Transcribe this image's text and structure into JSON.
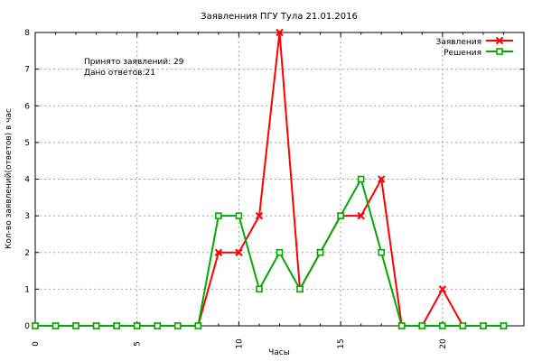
{
  "chart_data": {
    "type": "line",
    "title": "Заявленния ПГУ Тула 21.01.2016",
    "xlabel": "Часы",
    "ylabel": "Кол-во заявлений(ответов) в час",
    "xlim": [
      0,
      24
    ],
    "ylim": [
      0,
      8
    ],
    "x_ticks": [
      0,
      5,
      10,
      15,
      20
    ],
    "y_ticks": [
      0,
      1,
      2,
      3,
      4,
      5,
      6,
      7,
      8
    ],
    "grid": true,
    "legend_position": "top-right",
    "annotations": [
      "Принято заявлений: 29",
      "Дано ответов:21"
    ],
    "x": [
      0,
      1,
      2,
      3,
      4,
      5,
      6,
      7,
      8,
      9,
      10,
      11,
      12,
      13,
      14,
      15,
      16,
      17,
      18,
      19,
      20,
      21,
      22,
      23
    ],
    "series": [
      {
        "name": "Заявления",
        "color": "#ff0000",
        "marker": "x",
        "values": [
          0,
          0,
          0,
          0,
          0,
          0,
          0,
          0,
          0,
          2,
          2,
          3,
          8,
          1,
          2,
          3,
          3,
          4,
          0,
          0,
          1,
          0,
          0,
          0
        ]
      },
      {
        "name": "Решения",
        "color": "#00aa00",
        "marker": "square",
        "values": [
          0,
          0,
          0,
          0,
          0,
          0,
          0,
          0,
          0,
          3,
          3,
          1,
          2,
          1,
          2,
          3,
          4,
          2,
          0,
          0,
          0,
          0,
          0,
          0
        ]
      }
    ]
  }
}
